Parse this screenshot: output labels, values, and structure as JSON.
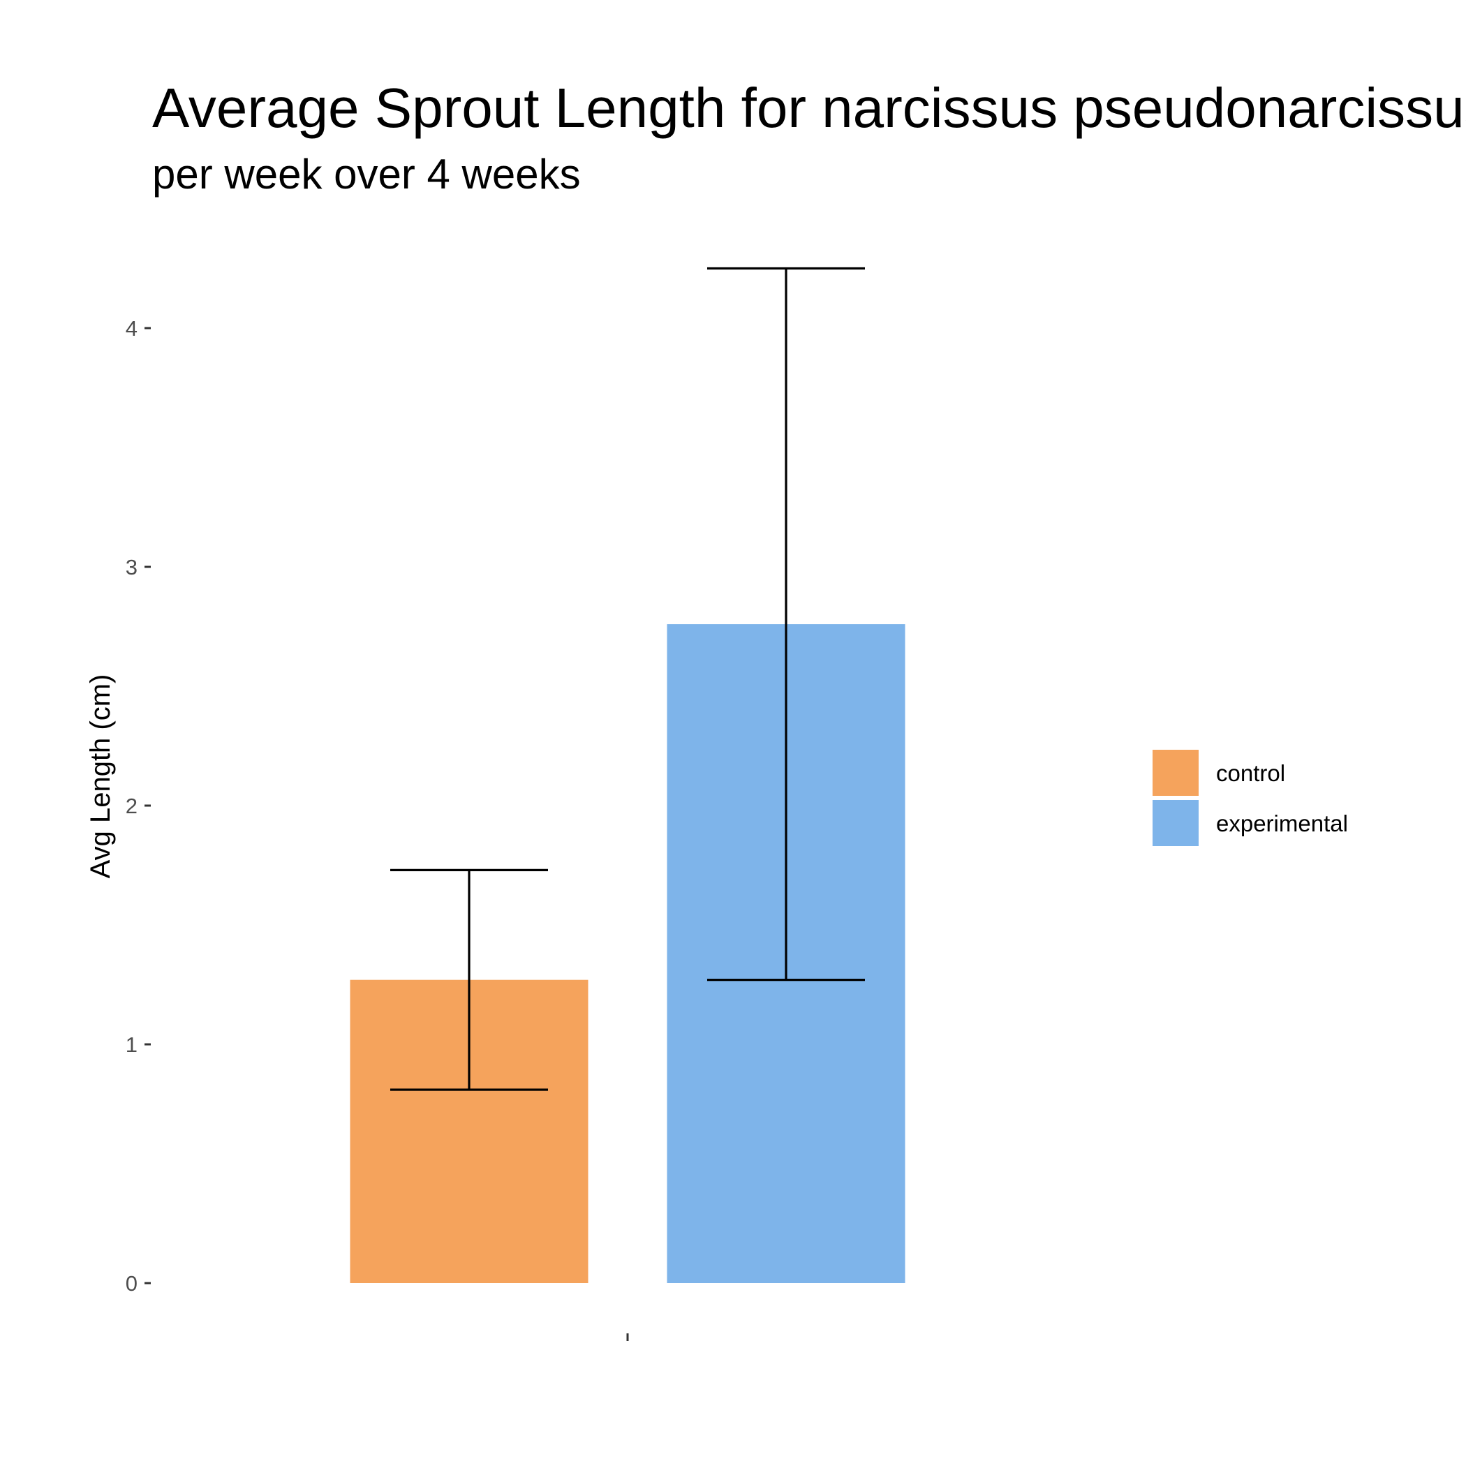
{
  "chart_data": {
    "type": "bar",
    "title": "Average Sprout Length for narcissus pseudonarcissus",
    "subtitle": "per week over 4 weeks",
    "xlabel": "",
    "ylabel": "Avg Length (cm)",
    "categories": [
      ""
    ],
    "ylim": [
      -0.2,
      4.5
    ],
    "y_ticks": [
      0,
      1,
      2,
      3,
      4
    ],
    "grid": false,
    "legend_position": "right",
    "series": [
      {
        "name": "control",
        "values": [
          1.27
        ],
        "error_low": [
          0.81
        ],
        "error_high": [
          1.73
        ],
        "color": "#F5A35C"
      },
      {
        "name": "experimental",
        "values": [
          2.76
        ],
        "error_low": [
          1.27
        ],
        "error_high": [
          4.25
        ],
        "color": "#7EB4EA"
      }
    ]
  }
}
